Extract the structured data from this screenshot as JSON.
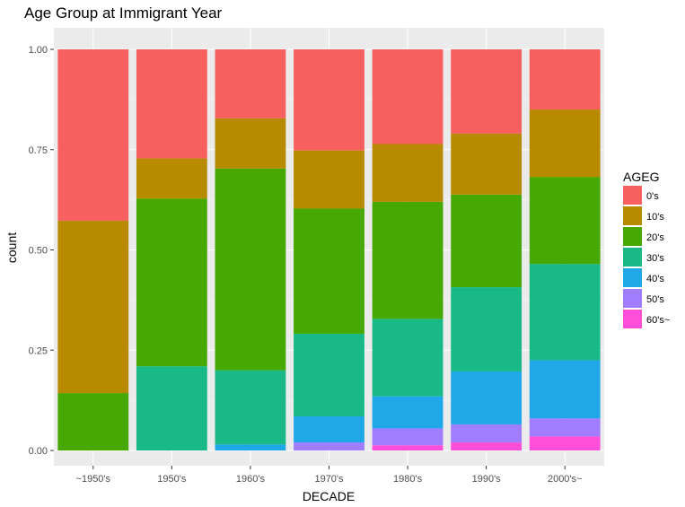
{
  "chart_data": {
    "type": "bar",
    "stacked": true,
    "position": "fill",
    "title": "Age Group at Immigrant Year",
    "xlabel": "DECADE",
    "ylabel": "count",
    "ylim": [
      0,
      1
    ],
    "yticks": [
      "0.00",
      "0.25",
      "0.50",
      "0.75",
      "1.00"
    ],
    "grid": true,
    "legend": {
      "title": "AGEG",
      "placement": "right"
    },
    "categories": [
      "~1950's",
      "1950's",
      "1960's",
      "1970's",
      "1980's",
      "1990's",
      "2000's~"
    ],
    "series": [
      {
        "name": "60's~",
        "color": "#FF4FD8",
        "values": [
          0.0,
          0.0,
          0.0,
          0.0,
          0.013,
          0.02,
          0.035
        ]
      },
      {
        "name": "50's",
        "color": "#A07CFF",
        "values": [
          0.0,
          0.0,
          0.0,
          0.02,
          0.042,
          0.045,
          0.045
        ]
      },
      {
        "name": "40's",
        "color": "#1EA8E8",
        "values": [
          0.0,
          0.0,
          0.015,
          0.065,
          0.08,
          0.132,
          0.145
        ]
      },
      {
        "name": "30's",
        "color": "#19B987",
        "values": [
          0.0,
          0.21,
          0.185,
          0.206,
          0.193,
          0.21,
          0.24
        ]
      },
      {
        "name": "20's",
        "color": "#46A800",
        "values": [
          0.143,
          0.418,
          0.503,
          0.312,
          0.292,
          0.231,
          0.217
        ]
      },
      {
        "name": "10's",
        "color": "#B88A00",
        "values": [
          0.43,
          0.1,
          0.125,
          0.145,
          0.144,
          0.152,
          0.168
        ]
      },
      {
        "name": "0's",
        "color": "#F7605F",
        "values": [
          0.427,
          0.272,
          0.172,
          0.252,
          0.236,
          0.21,
          0.15
        ]
      }
    ]
  }
}
